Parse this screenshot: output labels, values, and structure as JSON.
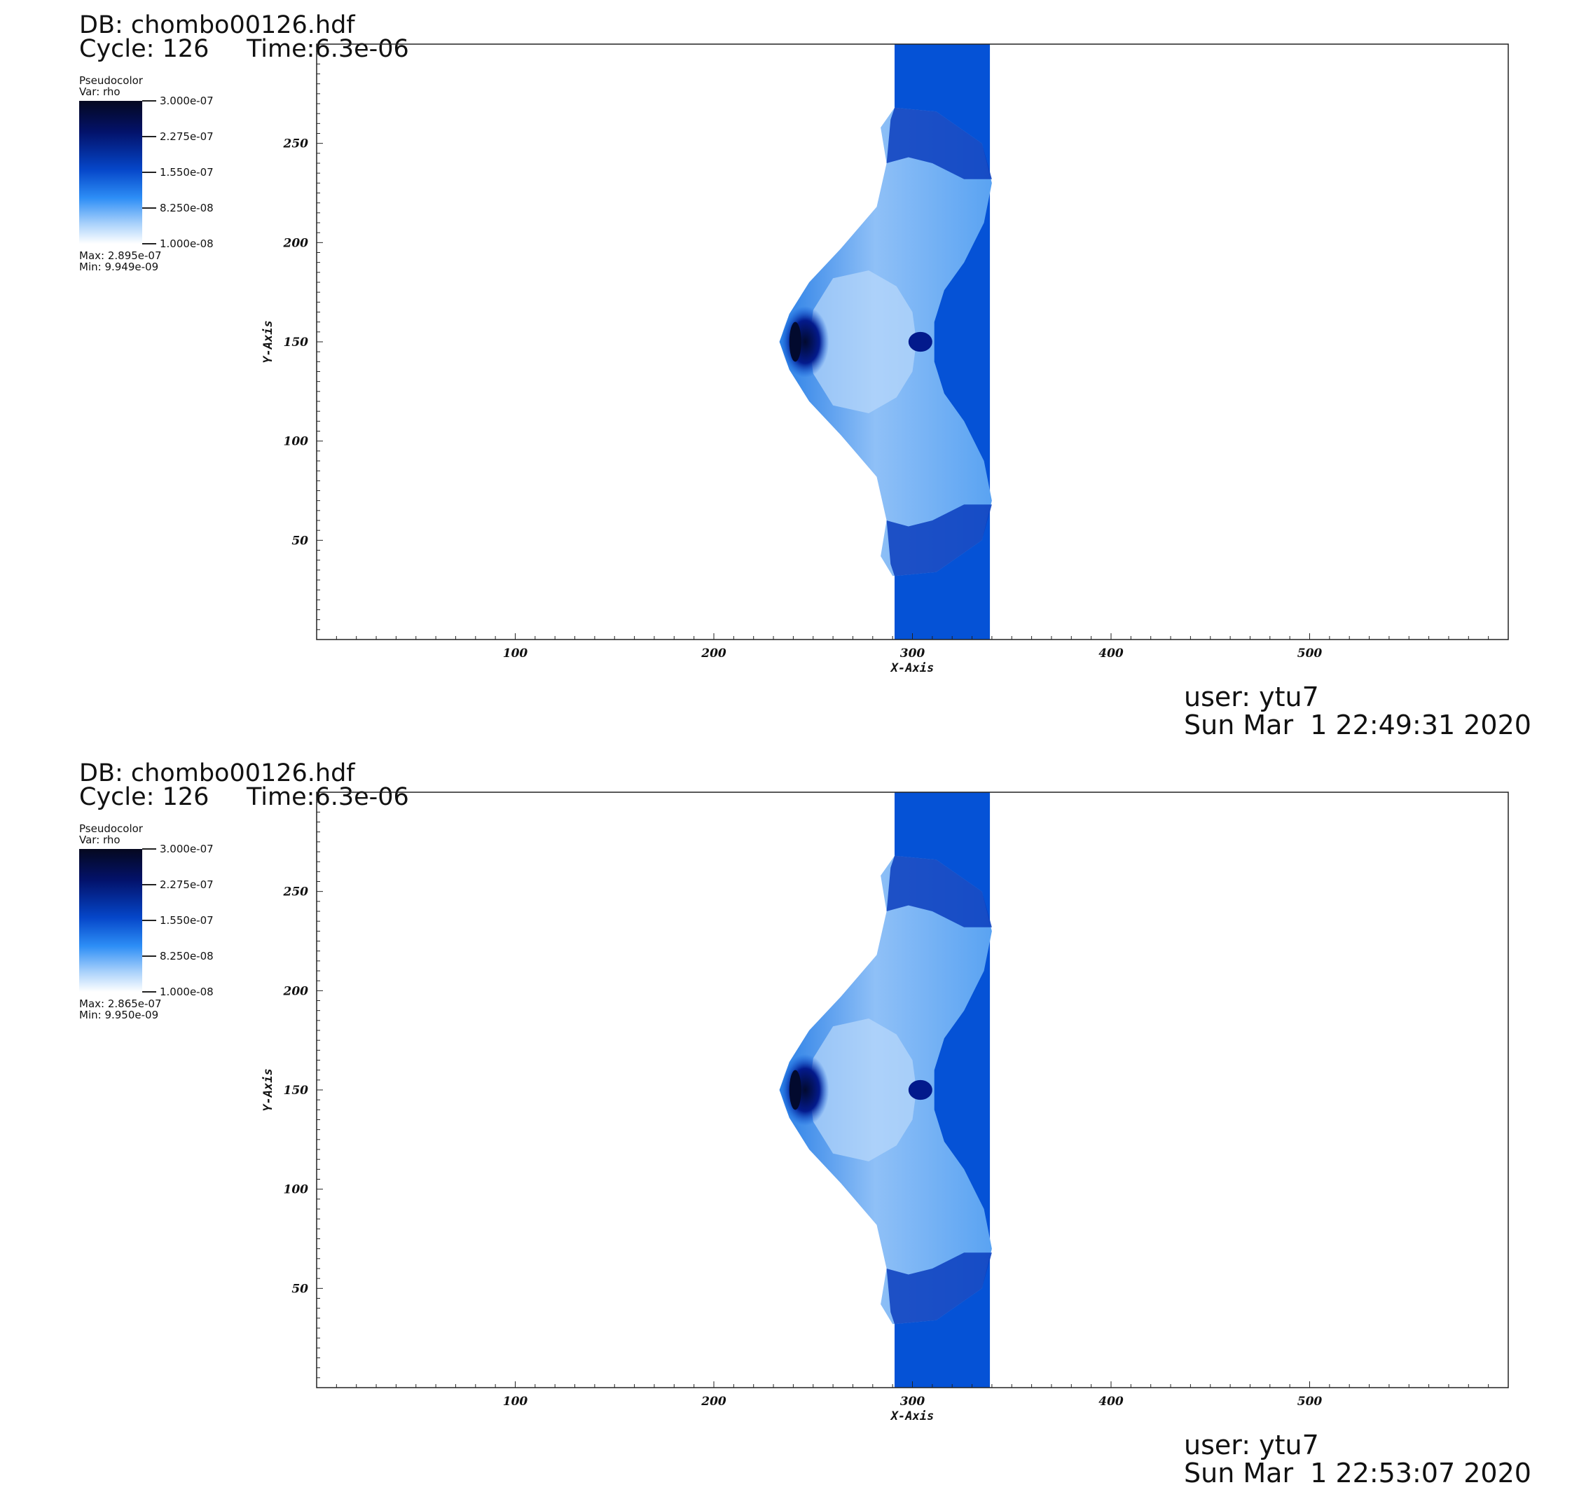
{
  "panels": [
    {
      "db_label": "DB: chombo00126.hdf",
      "cycle_label": "Cycle: 126",
      "time_label": "Time:6.3e-06",
      "legend": {
        "title": "Pseudocolor",
        "var": "Var: rho",
        "ticks": [
          "3.000e-07",
          "2.275e-07",
          "1.550e-07",
          "8.250e-08",
          "1.000e-08"
        ],
        "max": "Max:  2.895e-07",
        "min": "Min:  9.949e-09"
      },
      "user": "user: ytu7",
      "date": "Sun Mar  1 22:49:31 2020"
    },
    {
      "db_label": "DB: chombo00126.hdf",
      "cycle_label": "Cycle: 126",
      "time_label": "Time:6.3e-06",
      "legend": {
        "title": "Pseudocolor",
        "var": "Var: rho",
        "ticks": [
          "3.000e-07",
          "2.275e-07",
          "1.550e-07",
          "8.250e-08",
          "1.000e-08"
        ],
        "max": "Max:  2.865e-07",
        "min": "Min:  9.950e-09"
      },
      "user": "user: ytu7",
      "date": "Sun Mar  1 22:53:07 2020"
    }
  ],
  "chart_data": [
    {
      "type": "heatmap",
      "variable": "rho",
      "xlabel": "X-Axis",
      "ylabel": "Y-Axis",
      "xlim": [
        0,
        600
      ],
      "ylim": [
        0,
        300
      ],
      "xticks": [
        100,
        200,
        300,
        400,
        500
      ],
      "yticks": [
        50,
        100,
        150,
        200,
        250
      ],
      "colorbar": {
        "range": [
          1e-08,
          3e-07
        ],
        "ticks": [
          3e-07,
          2.275e-07,
          1.55e-07,
          8.25e-08,
          1e-08
        ]
      },
      "data_max": 2.895e-07,
      "data_min": 9.949e-09,
      "features": {
        "column_x_range": [
          291,
          339
        ],
        "dense_core_xy": [
          246,
          150
        ]
      },
      "colors": {
        "column": "#0552d6",
        "dark": "#031a8c",
        "light": "#8fc0f7"
      }
    },
    {
      "type": "heatmap",
      "variable": "rho",
      "xlabel": "X-Axis",
      "ylabel": "Y-Axis",
      "xlim": [
        0,
        600
      ],
      "ylim": [
        0,
        300
      ],
      "xticks": [
        100,
        200,
        300,
        400,
        500
      ],
      "yticks": [
        50,
        100,
        150,
        200,
        250
      ],
      "colorbar": {
        "range": [
          1e-08,
          3e-07
        ],
        "ticks": [
          3e-07,
          2.275e-07,
          1.55e-07,
          8.25e-08,
          1e-08
        ]
      },
      "data_max": 2.865e-07,
      "data_min": 9.95e-09,
      "features": {
        "column_x_range": [
          291,
          339
        ],
        "dense_core_xy": [
          246,
          150
        ]
      },
      "colors": {
        "column": "#0552d6",
        "dark": "#031a8c",
        "light": "#8fc0f7"
      }
    }
  ]
}
